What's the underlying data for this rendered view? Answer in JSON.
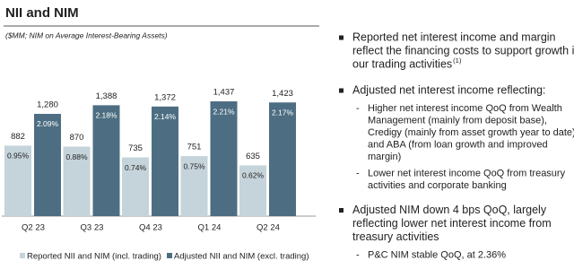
{
  "chart_data": {
    "type": "bar",
    "title": "NII and NIM",
    "subtitle": "($MM; NIM on Average Interest-Bearing Assets)",
    "categories": [
      "Q2 23",
      "Q3 23",
      "Q4 23",
      "Q1 24",
      "Q2 24"
    ],
    "series": [
      {
        "name": "Reported NII and NIM (incl. trading)",
        "color": "#c5d3da",
        "values": [
          882,
          870,
          735,
          751,
          635
        ],
        "nim": [
          0.95,
          0.88,
          0.74,
          0.75,
          0.62
        ],
        "nim_labels": [
          "0.95%",
          "0.88%",
          "0.74%",
          "0.75%",
          "0.62%"
        ]
      },
      {
        "name": "Adjusted NII and NIM (excl. trading)",
        "color": "#4d6e82",
        "values": [
          1280,
          1388,
          1372,
          1437,
          1423
        ],
        "value_labels": [
          "1,280",
          "1,388",
          "1,372",
          "1,437",
          "1,423"
        ],
        "nim": [
          2.09,
          2.18,
          2.14,
          2.21,
          2.17
        ],
        "nim_labels": [
          "2.09%",
          "2.18%",
          "2.14%",
          "2.21%",
          "2.17%"
        ]
      }
    ]
  },
  "notes": [
    {
      "lines": [
        "Reported net interest income and margin",
        "reflect the financing costs to support growth in",
        "our trading activities"
      ],
      "sup": "(1)"
    },
    {
      "lines": [
        "Adjusted net interest income reflecting:"
      ],
      "subs": [
        {
          "lines": [
            "Higher net interest income QoQ from Wealth",
            "Management (mainly from deposit base),",
            "Credigy (mainly from asset growth year to date)",
            "and ABA (from loan growth and improved",
            "margin)"
          ]
        },
        {
          "lines": [
            "Lower net interest income QoQ from treasury",
            "activities and corporate banking"
          ]
        }
      ]
    },
    {
      "lines": [
        "Adjusted NIM down 4 bps QoQ, largely",
        "reflecting lower net interest income from",
        "treasury activities"
      ],
      "subs": [
        {
          "lines": [
            "P&C NIM stable QoQ, at 2.36%"
          ]
        }
      ]
    }
  ]
}
